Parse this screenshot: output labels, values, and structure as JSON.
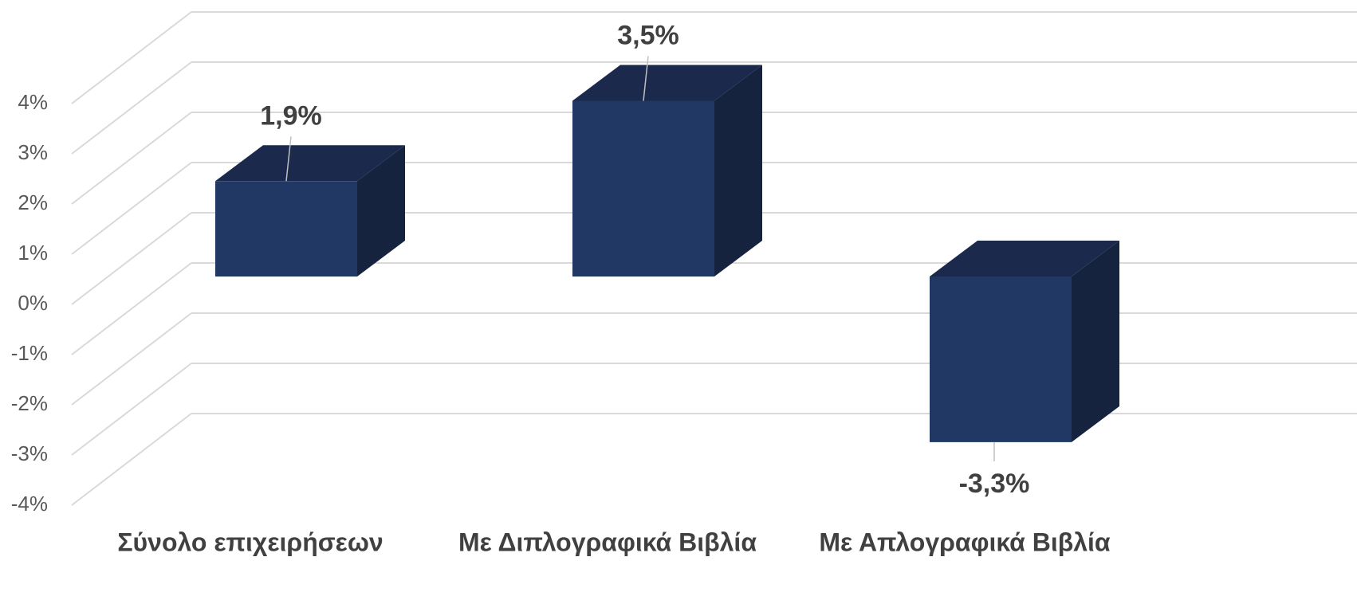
{
  "chart_data": {
    "type": "bar3d",
    "categories": [
      "Σύνολο επιχειρήσεων",
      "Με Διπλογραφικά Βιβλία",
      "Με Απλογραφικά Βιβλία"
    ],
    "values": [
      1.9,
      3.5,
      -3.3
    ],
    "value_labels": [
      "1,9%",
      "3,5%",
      "-3,3%"
    ],
    "color": "#213864",
    "ylim": [
      -4,
      4
    ],
    "yticks": [
      {
        "value": -4,
        "label": "-4%"
      },
      {
        "value": -3,
        "label": "-3%"
      },
      {
        "value": -2,
        "label": "-2%"
      },
      {
        "value": -1,
        "label": "-1%"
      },
      {
        "value": 0,
        "label": "0%"
      },
      {
        "value": 1,
        "label": "1%"
      },
      {
        "value": 2,
        "label": "2%"
      },
      {
        "value": 3,
        "label": "3%"
      },
      {
        "value": 4,
        "label": "4%"
      }
    ],
    "grid": true
  }
}
